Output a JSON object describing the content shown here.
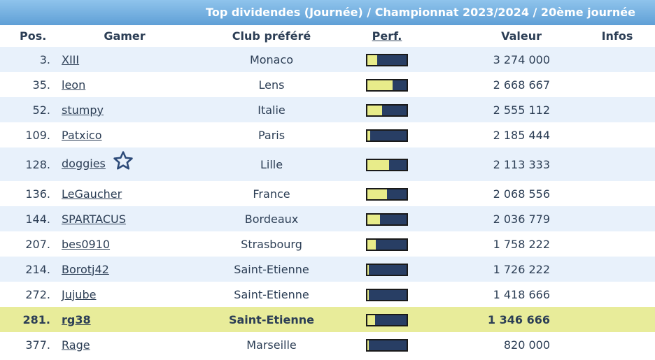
{
  "banner": {
    "title": "Top dividendes (Journée) / Championnat 2023/2024 / 20ème journée"
  },
  "headers": {
    "pos": "Pos.",
    "gamer": "Gamer",
    "club": "Club préféré",
    "perf": "Perf.",
    "valeur": "Valeur",
    "infos": "Infos"
  },
  "colors": {
    "bar_fill": "#e8ec8a",
    "bar_bg": "#283e64",
    "highlight": "#e8ec9a"
  },
  "rows": [
    {
      "pos": "3.",
      "gamer": "XIII",
      "club": "Monaco",
      "perf": 0.25,
      "valeur": "3 274 000",
      "star": false,
      "highlight": false
    },
    {
      "pos": "35.",
      "gamer": "leon",
      "club": "Lens",
      "perf": 0.65,
      "valeur": "2 668 667",
      "star": false,
      "highlight": false
    },
    {
      "pos": "52.",
      "gamer": "stumpy",
      "club": "Italie",
      "perf": 0.38,
      "valeur": "2 555 112",
      "star": false,
      "highlight": false
    },
    {
      "pos": "109.",
      "gamer": "Patxico",
      "club": "Paris",
      "perf": 0.08,
      "valeur": "2 185 444",
      "star": false,
      "highlight": false
    },
    {
      "pos": "128.",
      "gamer": "doggies",
      "club": "Lille",
      "perf": 0.55,
      "valeur": "2 113 333",
      "star": true,
      "highlight": false
    },
    {
      "pos": "136.",
      "gamer": "LeGaucher",
      "club": "France",
      "perf": 0.5,
      "valeur": "2 068 556",
      "star": false,
      "highlight": false
    },
    {
      "pos": "144.",
      "gamer": "SPARTACUS",
      "club": "Bordeaux",
      "perf": 0.32,
      "valeur": "2 036 779",
      "star": false,
      "highlight": false
    },
    {
      "pos": "207.",
      "gamer": "bes0910",
      "club": "Strasbourg",
      "perf": 0.22,
      "valeur": "1 758 222",
      "star": false,
      "highlight": false
    },
    {
      "pos": "214.",
      "gamer": "Borotj42",
      "club": "Saint-Etienne",
      "perf": 0.04,
      "valeur": "1 726 222",
      "star": false,
      "highlight": false
    },
    {
      "pos": "272.",
      "gamer": "Jujube",
      "club": "Saint-Etienne",
      "perf": 0.04,
      "valeur": "1 418 666",
      "star": false,
      "highlight": false
    },
    {
      "pos": "281.",
      "gamer": "rg38",
      "club": "Saint-Etienne",
      "perf": 0.2,
      "valeur": "1 346 666",
      "star": false,
      "highlight": true
    },
    {
      "pos": "377.",
      "gamer": "Rage",
      "club": "Marseille",
      "perf": 0.04,
      "valeur": "820 000",
      "star": false,
      "highlight": false
    }
  ]
}
